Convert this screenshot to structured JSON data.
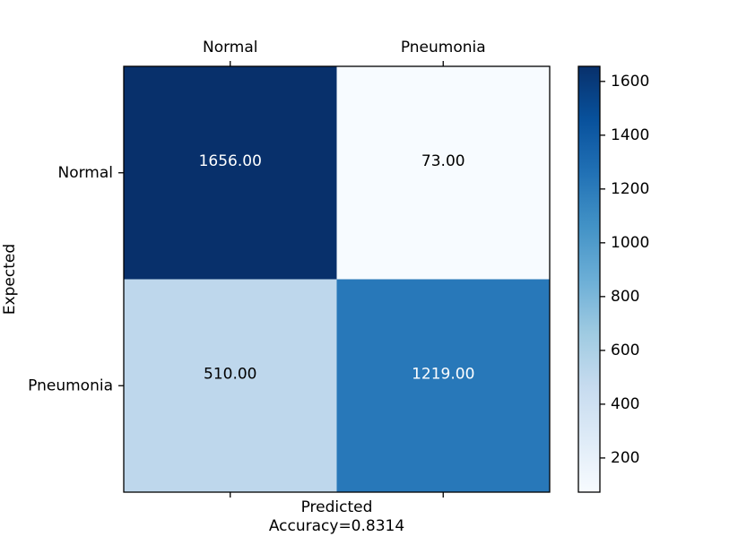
{
  "chart_data": {
    "type": "heatmap",
    "title": "",
    "xlabel": "Predicted",
    "subtitle": "Accuracy=0.8314",
    "ylabel": "Expected",
    "x_categories": [
      "Normal",
      "Pneumonia"
    ],
    "y_categories": [
      "Normal",
      "Pneumonia"
    ],
    "values": [
      [
        1656,
        73
      ],
      [
        510,
        1219
      ]
    ],
    "cell_labels": [
      [
        "1656.00",
        "73.00"
      ],
      [
        "510.00",
        "1219.00"
      ]
    ],
    "colormap": "Blues",
    "vmin": 73,
    "vmax": 1656,
    "colorbar_ticks": [
      200,
      400,
      600,
      800,
      1000,
      1200,
      1400,
      1600
    ],
    "colorbar_tick_labels": [
      "200",
      "400",
      "600",
      "800",
      "1000",
      "1200",
      "1400",
      "1600"
    ],
    "x_tick_position": "top",
    "grid": false,
    "colors": {
      "low": "#f7fbff",
      "high": "#08306b",
      "text_dark": "#000000",
      "text_light": "#ffffff"
    }
  }
}
